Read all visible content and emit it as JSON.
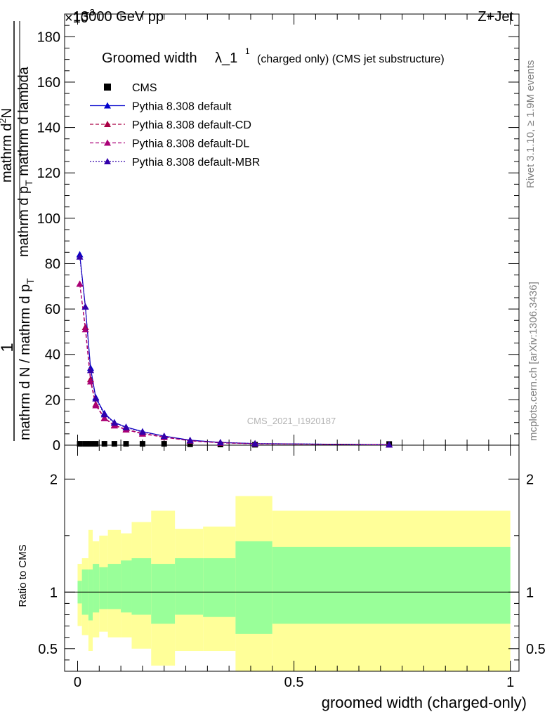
{
  "header": {
    "left_label": "13000 GeV pp",
    "right_label": "Z+Jet",
    "exponent_label": "×10",
    "exponent_power": "−3"
  },
  "side_labels": {
    "rivet": "Rivet 3.1.10, ≥ 1.9M events",
    "mcplots": "mcplots.cern.ch [arXiv:1306.3436]"
  },
  "watermark": "CMS_2021_I1920187",
  "colors": {
    "data": "#000000",
    "default": "#0000cc",
    "cd": "#aa0044",
    "dl": "#aa0077",
    "mbr": "#3300aa",
    "band_inner": "#99ff99",
    "band_outer": "#ffff99"
  },
  "chart_data": [
    {
      "type": "line",
      "title_main": "Groomed width",
      "title_lambda": "λ_1",
      "title_sup": "1",
      "title_note": "(charged only) (CMS jet substructure)",
      "ylabel_top": "1",
      "ylabel_num": "mathrm d",
      "ylabel_num_sup": "2",
      "ylabel_num_end": "N",
      "ylabel_num_line2": "mathrm d p",
      "ylabel_num_sub": "T",
      "ylabel_num_line2b": " mathrm d lambda",
      "ylabel_den": "mathrm d N / mathrm d p",
      "ylabel_den_sub": "T",
      "ylim": [
        0,
        190
      ],
      "xlim": [
        -0.03,
        1.02
      ],
      "y_ticks": [
        0,
        20,
        40,
        60,
        80,
        100,
        120,
        140,
        160,
        180
      ],
      "y_tick_labels": [
        "0",
        "20",
        "40",
        "60",
        "80",
        "100",
        "120",
        "140",
        "160",
        "180"
      ],
      "legend": [
        "CMS",
        "Pythia 8.308 default",
        "Pythia 8.308 default-CD",
        "Pythia 8.308 default-DL",
        "Pythia 8.308 default-MBR"
      ],
      "legend_position": "top-left",
      "x": [
        0.005,
        0.018,
        0.03,
        0.042,
        0.062,
        0.085,
        0.112,
        0.15,
        0.2,
        0.26,
        0.33,
        0.41,
        0.72
      ],
      "series": [
        {
          "name": "CMS",
          "style": "marker-square",
          "values": [
            0.6,
            0.6,
            0.6,
            0.6,
            0.6,
            0.6,
            0.6,
            0.6,
            0.6,
            0.4,
            0.3,
            0.2,
            0.5
          ]
        },
        {
          "name": "Pythia 8.308 default",
          "style": "solid",
          "values": [
            84,
            61,
            34,
            21,
            14,
            10,
            8,
            6,
            4,
            2.2,
            1.2,
            0.7,
            0.2
          ]
        },
        {
          "name": "Pythia 8.308 default-CD",
          "style": "dashed",
          "values": [
            71,
            52,
            29,
            18,
            12,
            8.8,
            7,
            5.2,
            3.6,
            2,
            1.1,
            0.6,
            0.2
          ]
        },
        {
          "name": "Pythia 8.308 default-DL",
          "style": "dashed",
          "values": [
            71,
            51,
            28,
            17.5,
            11.8,
            8.6,
            6.8,
            5,
            3.5,
            1.9,
            1,
            0.6,
            0.2
          ]
        },
        {
          "name": "Pythia 8.308 default-MBR",
          "style": "dotted",
          "values": [
            83,
            61,
            33,
            20.5,
            13.5,
            9.8,
            7.8,
            5.8,
            4,
            2.1,
            1.2,
            0.7,
            0.2
          ]
        }
      ]
    },
    {
      "type": "area",
      "ylabel": "Ratio to CMS",
      "xlabel": "groomed width (charged-only)",
      "ylim": [
        0.3,
        2.3
      ],
      "xlim": [
        -0.03,
        1.02
      ],
      "x_ticks": [
        0,
        0.5,
        1
      ],
      "x_tick_labels": [
        "0",
        "0.5",
        "1"
      ],
      "y_ticks": [
        0.5,
        1,
        2
      ],
      "y_tick_labels": [
        "0.5",
        "1",
        "2"
      ],
      "reference_line": 1,
      "bin_edges": [
        0,
        0.01,
        0.025,
        0.035,
        0.05,
        0.07,
        0.1,
        0.125,
        0.17,
        0.225,
        0.29,
        0.365,
        0.45,
        1.0
      ],
      "inner_band_low": [
        0.9,
        0.8,
        0.75,
        0.82,
        0.85,
        0.85,
        0.82,
        0.8,
        0.72,
        0.8,
        0.78,
        0.63,
        0.72
      ],
      "inner_band_high": [
        1.1,
        1.2,
        1.2,
        1.25,
        1.22,
        1.25,
        1.28,
        1.3,
        1.25,
        1.3,
        1.3,
        1.45,
        1.4
      ],
      "outer_band_low": [
        0.7,
        0.62,
        0.48,
        0.6,
        0.65,
        0.6,
        0.6,
        0.5,
        0.35,
        0.48,
        0.48,
        0.3,
        0.3
      ],
      "outer_band_high": [
        1.25,
        1.3,
        1.55,
        1.45,
        1.5,
        1.55,
        1.52,
        1.62,
        1.72,
        1.56,
        1.58,
        1.85,
        1.72
      ]
    }
  ]
}
